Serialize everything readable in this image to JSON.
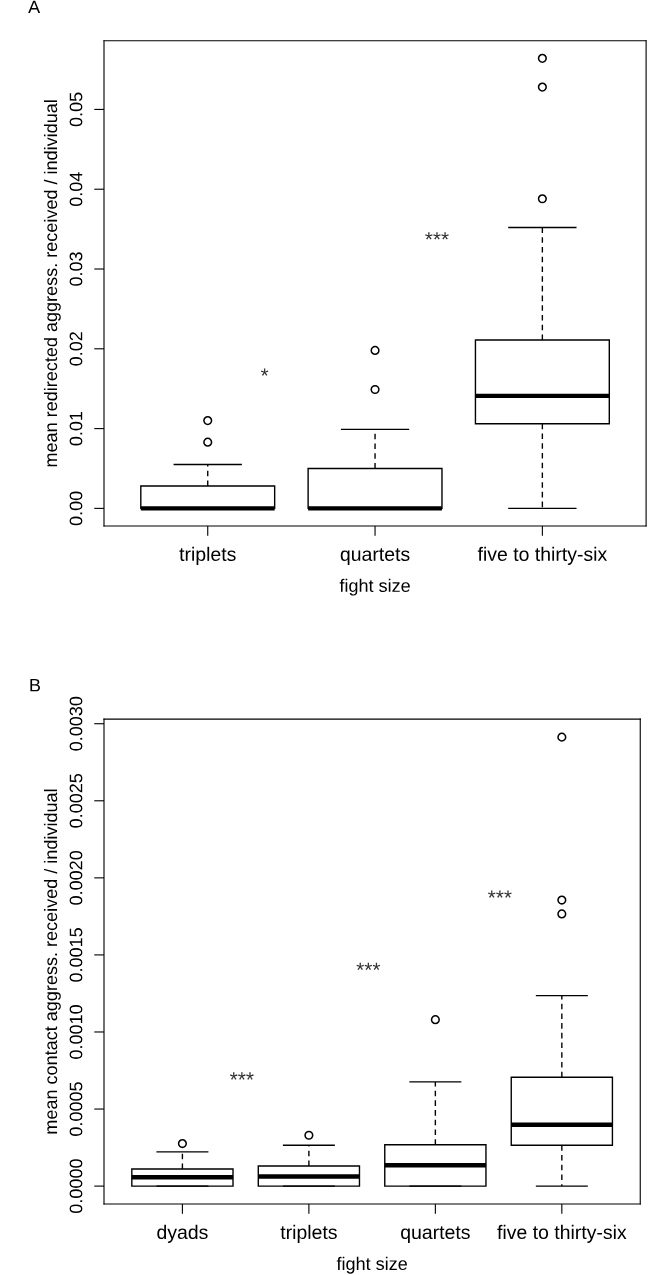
{
  "chart_data": [
    {
      "type": "box",
      "title": "A",
      "xlabel": "fight size",
      "ylabel": "mean redirected aggress. received / individual",
      "categories": [
        "triplets",
        "quartets",
        "five to thirty-six"
      ],
      "boxes": [
        {
          "low": 0,
          "q1": 0,
          "median": 0,
          "q3": 0.0028,
          "high": 0.0055,
          "outliers": [
            0.0083,
            0.011
          ]
        },
        {
          "low": 0,
          "q1": 0,
          "median": 0,
          "q3": 0.005,
          "high": 0.0099,
          "outliers": [
            0.0149,
            0.0198
          ]
        },
        {
          "low": 0,
          "q1": 0.0106,
          "median": 0.0141,
          "q3": 0.0211,
          "high": 0.0352,
          "outliers": [
            0.0388,
            0.0528,
            0.0564
          ]
        }
      ],
      "ylim": [
        -0.0022,
        0.0586
      ],
      "yticks": [
        {
          "value": 0,
          "label": "0.00"
        },
        {
          "value": 0.01,
          "label": "0.01"
        },
        {
          "value": 0.02,
          "label": "0.02"
        },
        {
          "value": 0.03,
          "label": "0.03"
        },
        {
          "value": 0.04,
          "label": "0.04"
        },
        {
          "value": 0.05,
          "label": "0.05"
        }
      ],
      "annotations": [
        "*",
        "***"
      ]
    },
    {
      "type": "box",
      "title": "B",
      "xlabel": "fight size",
      "ylabel": "mean contact aggress. received / individual",
      "categories": [
        "dyads",
        "triplets",
        "quartets",
        "five to thirty-six"
      ],
      "boxes": [
        {
          "low": 0,
          "q1": 0,
          "median": 5.7e-05,
          "q3": 0.000111,
          "high": 0.000222,
          "outliers": [
            0.000276
          ]
        },
        {
          "low": 0,
          "q1": 0,
          "median": 6.2e-05,
          "q3": 0.00013,
          "high": 0.000265,
          "outliers": [
            0.00033
          ]
        },
        {
          "low": 0,
          "q1": 0,
          "median": 0.000135,
          "q3": 0.000268,
          "high": 0.000676,
          "outliers": [
            0.00108
          ]
        },
        {
          "low": 0,
          "q1": 0.000265,
          "median": 0.000398,
          "q3": 0.000706,
          "high": 0.001236,
          "outliers": [
            0.001766,
            0.001856,
            0.002913
          ]
        }
      ],
      "ylim": [
        -0.000116,
        0.00303
      ],
      "yticks": [
        {
          "value": 0,
          "label": "0.0000"
        },
        {
          "value": 0.0005,
          "label": "0.0005"
        },
        {
          "value": 0.001,
          "label": "0.0010"
        },
        {
          "value": 0.0015,
          "label": "0.0015"
        },
        {
          "value": 0.002,
          "label": "0.0020"
        },
        {
          "value": 0.0025,
          "label": "0.0025"
        },
        {
          "value": 0.003,
          "label": "0.0030"
        }
      ],
      "annotations": [
        "***",
        "***",
        "***"
      ]
    }
  ]
}
